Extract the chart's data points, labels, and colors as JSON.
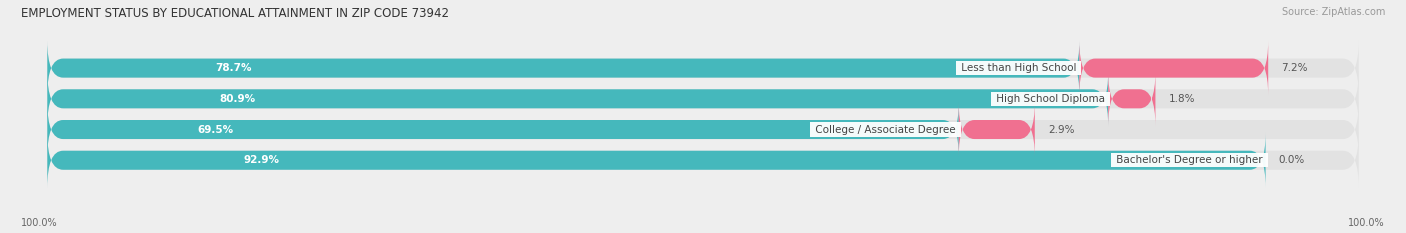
{
  "title": "EMPLOYMENT STATUS BY EDUCATIONAL ATTAINMENT IN ZIP CODE 73942",
  "source": "Source: ZipAtlas.com",
  "categories": [
    "Less than High School",
    "High School Diploma",
    "College / Associate Degree",
    "Bachelor's Degree or higher"
  ],
  "labor_force": [
    78.7,
    80.9,
    69.5,
    92.9
  ],
  "unemployed": [
    7.2,
    1.8,
    2.9,
    0.0
  ],
  "labor_force_color": "#45B8BC",
  "unemployed_color": "#F07090",
  "background_color": "#eeeeee",
  "bar_bg_color": "#e2e2e2",
  "title_fontsize": 8.5,
  "source_fontsize": 7,
  "label_fontsize": 7.5,
  "tick_fontsize": 7,
  "legend_fontsize": 7.5,
  "axis_label_left": "100.0%",
  "axis_label_right": "100.0%",
  "bar_height": 0.62,
  "total_width": 100.0,
  "unemp_scale": 3.5
}
